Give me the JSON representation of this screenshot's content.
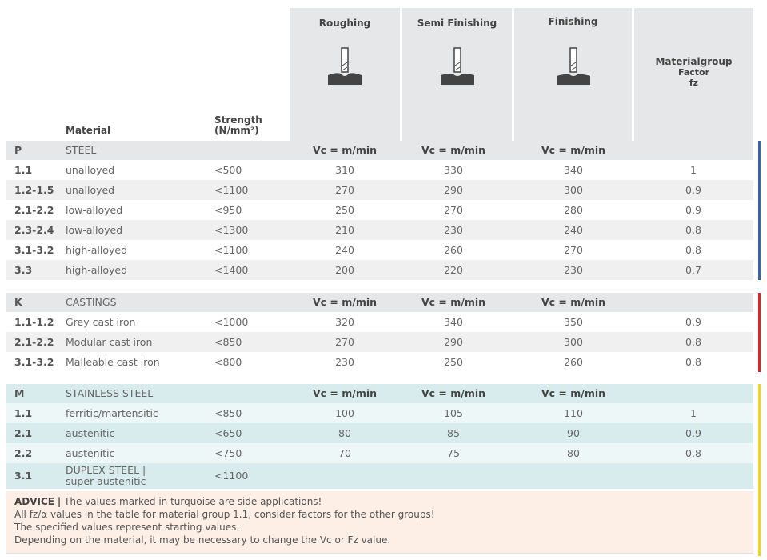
{
  "header": {
    "material": "Material",
    "strength": "Strength\n(N/mm²)",
    "roughing": "Roughing",
    "semi": "Semi Finishing",
    "finishing": "Finishing",
    "factor": [
      "Materialgroup",
      "Factor",
      "fz"
    ]
  },
  "colors": {
    "P": "#3a63ad",
    "K": "#d9252b",
    "M": "#f3d417",
    "turquoise": "#d9eced",
    "turquoise_light": "#eef7f7",
    "gray": "#e6e7e8",
    "advice_bg": "#fdeee6"
  },
  "icons": [
    "end-mill-roughing-icon",
    "end-mill-semi-finishing-icon",
    "end-mill-finishing-icon"
  ],
  "sections": [
    {
      "code": "P",
      "name": "STEEL",
      "unit": "Vc = m/min",
      "rows": [
        [
          "1.1",
          "unalloyed",
          "<500",
          "310",
          "330",
          "340",
          "1"
        ],
        [
          "1.2-1.5",
          "unalloyed",
          "<1100",
          "270",
          "290",
          "300",
          "0.9"
        ],
        [
          "2.1-2.2",
          "low-alloyed",
          "<950",
          "250",
          "270",
          "280",
          "0.9"
        ],
        [
          "2.3-2.4",
          "low-alloyed",
          "<1300",
          "210",
          "230",
          "240",
          "0.8"
        ],
        [
          "3.1-3.2",
          "high-alloyed",
          "<1100",
          "240",
          "260",
          "270",
          "0.8"
        ],
        [
          "3.3",
          "high-alloyed",
          "<1400",
          "200",
          "220",
          "230",
          "0.7"
        ]
      ]
    },
    {
      "code": "K",
      "name": "CASTINGS",
      "unit": "Vc = m/min",
      "rows": [
        [
          "1.1-1.2",
          "Grey cast iron",
          "<1000",
          "320",
          "340",
          "350",
          "0.9"
        ],
        [
          "2.1-2.2",
          "Modular cast iron",
          "<850",
          "270",
          "290",
          "300",
          "0.8"
        ],
        [
          "3.1-3.2",
          "Malleable cast iron",
          "<800",
          "230",
          "250",
          "260",
          "0.8"
        ]
      ]
    },
    {
      "code": "M",
      "name": "STAINLESS STEEL",
      "unit": "Vc = m/min",
      "rows": [
        [
          "1.1",
          "ferritic/martensitic",
          "<850",
          "100",
          "105",
          "110",
          "1"
        ],
        [
          "2.1",
          "austenitic",
          "<650",
          "80",
          "85",
          "90",
          "0.9"
        ],
        [
          "2.2",
          "austenitic",
          "<750",
          "70",
          "75",
          "80",
          "0.8"
        ],
        [
          "3.1",
          "DUPLEX STEEL |\nsuper austenitic",
          "<1100",
          "",
          "",
          "",
          ""
        ]
      ]
    }
  ],
  "advice": {
    "label": "ADVICE",
    "sep": "|",
    "lines": [
      "The values marked in turquoise are side applications!",
      "All fz/α values in the table for material group 1.1, consider factors for the other groups!",
      "The specified values represent starting values.",
      "Depending on the material, it may be necessary to change the Vc or Fz value."
    ]
  }
}
